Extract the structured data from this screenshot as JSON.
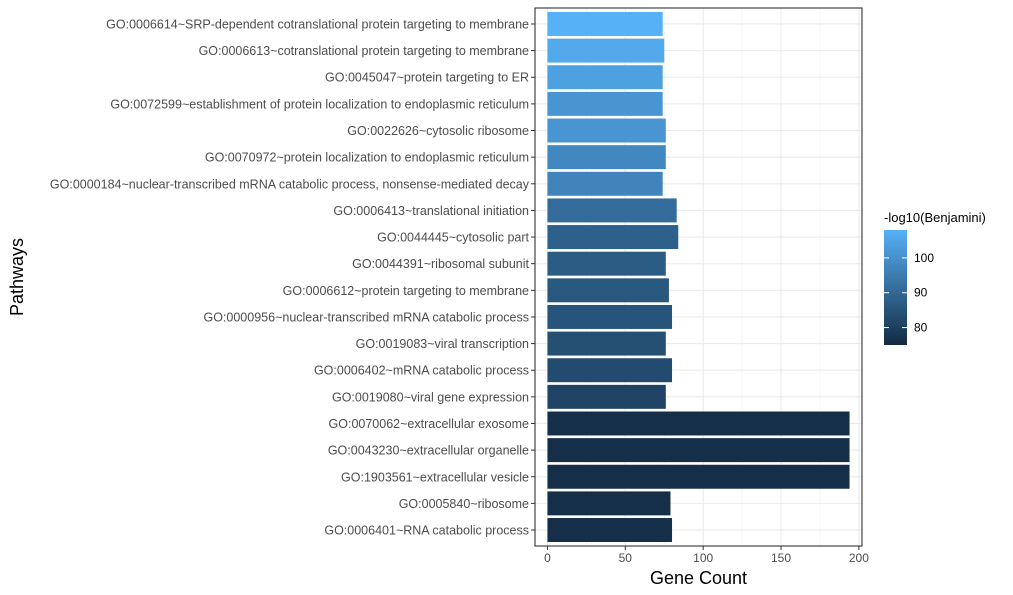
{
  "chart_data": {
    "type": "bar",
    "orientation": "horizontal",
    "xlabel": "Gene Count",
    "ylabel": "Pathways",
    "xlim": [
      -8,
      202
    ],
    "xticks": [
      0,
      50,
      100,
      150,
      200
    ],
    "grid": true,
    "legend": {
      "title": "-log10(Benjamini)",
      "placement": "right",
      "ticks": [
        80,
        90,
        100
      ],
      "range": [
        75,
        108
      ],
      "low_color": "#132B43",
      "high_color": "#56B1F7"
    },
    "categories": [
      "GO:0006614~SRP-dependent cotranslational protein targeting to membrane",
      "GO:0006613~cotranslational protein targeting to membrane",
      "GO:0045047~protein targeting to ER",
      "GO:0072599~establishment of protein localization to endoplasmic reticulum",
      "GO:0022626~cytosolic ribosome",
      "GO:0070972~protein localization to endoplasmic reticulum",
      "GO:0000184~nuclear-transcribed mRNA catabolic process, nonsense-mediated decay",
      "GO:0006413~translational initiation",
      "GO:0044445~cytosolic part",
      "GO:0044391~ribosomal subunit",
      "GO:0006612~protein targeting to membrane",
      "GO:0000956~nuclear-transcribed mRNA catabolic process",
      "GO:0019083~viral transcription",
      "GO:0006402~mRNA catabolic process",
      "GO:0019080~viral gene expression",
      "GO:0070062~extracellular exosome",
      "GO:0043230~extracellular organelle",
      "GO:1903561~extracellular vesicle",
      "GO:0005840~ribosome",
      "GO:0006401~RNA catabolic process"
    ],
    "values": [
      74,
      75,
      74,
      74,
      76,
      76,
      74,
      83,
      84,
      76,
      78,
      80,
      76,
      80,
      76,
      194,
      194,
      194,
      79,
      80
    ],
    "color_values": [
      108,
      106,
      104,
      101,
      101,
      98,
      97,
      91,
      88,
      87,
      86,
      85,
      84,
      83,
      81,
      76,
      76,
      76,
      76,
      76
    ]
  }
}
